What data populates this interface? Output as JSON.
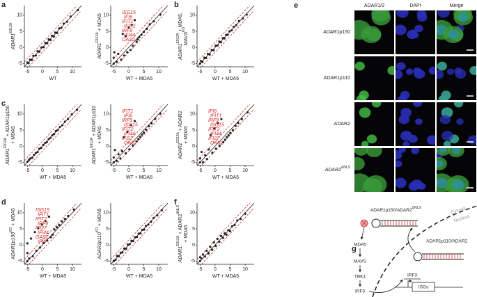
{
  "chart_data": [
    {
      "type": "scatter",
      "panel": "a",
      "ylabel": [
        [
          "ADAR1",
          "E912A"
        ]
      ],
      "xlabel": "WT",
      "x": [
        -5,
        -4.6,
        -4.1,
        -3.5,
        -3,
        -2.2,
        -1.6,
        -1,
        -0.3,
        0.4,
        1,
        1.6,
        2.1,
        2.7,
        3.2,
        3.8,
        4.3,
        4.9,
        5.6,
        6.3,
        7.1,
        8.2,
        9.4,
        11.8
      ],
      "y": [
        -4.7,
        -4.9,
        -3.8,
        -3.9,
        -2.6,
        -2.5,
        -1.2,
        -1.3,
        0,
        0.1,
        1.4,
        1.3,
        2.5,
        2.3,
        3.6,
        3.4,
        4.6,
        4.5,
        5.9,
        6.1,
        7.4,
        8,
        9.6,
        11.6
      ],
      "xlim": [
        -6,
        13
      ],
      "ylim": [
        -6,
        13
      ],
      "xticks": [
        -5,
        0,
        5,
        10
      ],
      "yticks": [
        -5,
        0,
        5,
        10
      ],
      "color": "#222222",
      "guide_color": "#d62728",
      "guide_offset": 1.5
    },
    {
      "type": "scatter",
      "ylabel": [
        [
          "ADAR1",
          "E912A",
          " + MDA5"
        ]
      ],
      "xlabel": "WT + MDA5",
      "x": [
        -5,
        -5,
        -4.8,
        -4,
        -3.5,
        -2.5,
        -2,
        -1.5,
        -1,
        -0.5,
        0,
        0.6,
        1,
        1.4,
        2,
        2.6,
        3,
        3.5,
        4.2,
        5,
        6,
        7,
        8.3,
        10.5
      ],
      "y": [
        -5,
        -3.2,
        -1.5,
        -4.5,
        -2,
        -3.8,
        4.2,
        -2.5,
        3.5,
        -1.5,
        6.2,
        -0.8,
        7,
        0.5,
        8.5,
        1.8,
        2.5,
        3.2,
        3.9,
        4.8,
        5.8,
        7.2,
        8.1,
        10.2
      ],
      "xlim": [
        -6,
        13
      ],
      "ylim": [
        -6,
        13
      ],
      "xticks": [
        -5,
        0,
        5,
        10
      ],
      "yticks": [
        -5,
        0,
        5,
        10
      ],
      "color": "#222222",
      "guide_color": "#d62728",
      "guide_offset": 1.5,
      "annotations": [
        "ISG15",
        "IFI6",
        "IFIT1",
        "IFIT2",
        "IRF9",
        "IFI44",
        "OAS2"
      ]
    },
    {
      "type": "scatter",
      "panel": "b",
      "ylabel": [
        [
          "ADAR1",
          "E912A",
          " + MDA5,"
        ],
        [
          "MAVS",
          "KO"
        ]
      ],
      "xlabel": "WT + MDA5",
      "x": [
        -5,
        -4.7,
        -4.2,
        -3.6,
        -3,
        -2.4,
        -1.8,
        -1.1,
        -0.5,
        0.2,
        0.8,
        1.4,
        2,
        2.6,
        3.1,
        3.7,
        4.2,
        4.8,
        5.5,
        6.2,
        7,
        8,
        9.2,
        10.5
      ],
      "y": [
        -5,
        -4.2,
        -4.5,
        -3.2,
        -3.3,
        -2,
        -2.2,
        -0.8,
        -0.9,
        0.5,
        0.6,
        1.8,
        1.6,
        2.9,
        2.8,
        3.9,
        3.9,
        5,
        5.3,
        6.4,
        6.9,
        8.2,
        9,
        10.2
      ],
      "xlim": [
        -6,
        13
      ],
      "ylim": [
        -6,
        13
      ],
      "xticks": [
        -5,
        0,
        5,
        10
      ],
      "yticks": [
        -5,
        0,
        5,
        10
      ],
      "color": "#222222",
      "guide_color": "#d62728",
      "guide_offset": 1.5
    },
    {
      "type": "scatter",
      "panel": "c",
      "ylabel": [
        [
          "ADAR1",
          "E912A",
          " + ADAR1p150"
        ],
        [
          "+ MDA5"
        ]
      ],
      "xlabel": "WT + MDA5",
      "x": [
        -5,
        -4.5,
        -4,
        -3.4,
        -2.8,
        -2.2,
        -1.6,
        -1,
        -0.4,
        0.3,
        0.9,
        1.5,
        2.1,
        2.7,
        3.3,
        3.9,
        4.5,
        5.1,
        5.8,
        6.6,
        7.5,
        8.5,
        9.8,
        11.5
      ],
      "y": [
        -4.8,
        -4.3,
        -3.8,
        -3.6,
        -2.7,
        -2.1,
        -1.8,
        -0.8,
        -0.5,
        0.4,
        1,
        1.3,
        2.2,
        2.6,
        3.4,
        3.8,
        4.7,
        5,
        6,
        6.5,
        7.6,
        8.4,
        9.9,
        11.3
      ],
      "xlim": [
        -6,
        13
      ],
      "ylim": [
        -6,
        13
      ],
      "xticks": [
        -5,
        0,
        5,
        10
      ],
      "yticks": [
        -5,
        0,
        5,
        10
      ],
      "color": "#222222",
      "guide_color": "#d62728",
      "guide_offset": 1.5
    },
    {
      "type": "scatter",
      "ylabel": [
        [
          "ADAR1",
          "E912A",
          " + ADAR1p110"
        ],
        [
          "+ MDA5"
        ]
      ],
      "xlabel": "WT + MDA5",
      "x": [
        -5,
        -5,
        -4.6,
        -4,
        -3.4,
        -2.8,
        -2.2,
        -1.6,
        -1,
        -0.4,
        0.2,
        0.8,
        1.4,
        2,
        2.6,
        3.2,
        3.8,
        4.4,
        5,
        5.8,
        6.7,
        7.6,
        8.8,
        10.5
      ],
      "y": [
        -5,
        -3.5,
        -1.2,
        -4.6,
        -2.5,
        -3.8,
        -1.5,
        2.8,
        -2.2,
        4.5,
        -1,
        6.5,
        0.2,
        7.8,
        1.5,
        2.2,
        2.9,
        3.6,
        4.2,
        5.1,
        6.2,
        7.1,
        8.5,
        10.1
      ],
      "xlim": [
        -6,
        13
      ],
      "ylim": [
        -6,
        13
      ],
      "xticks": [
        -5,
        0,
        5,
        10
      ],
      "yticks": [
        -5,
        0,
        5,
        10
      ],
      "color": "#222222",
      "guide_color": "#d62728",
      "guide_offset": 1.5,
      "annotations": [
        "IFIT1",
        "IFI6",
        "IRF9",
        "ISG15",
        "IFIT2",
        "IFI44",
        "IFI27",
        "OAS2"
      ]
    },
    {
      "type": "scatter",
      "ylabel": [
        [
          "ADAR1",
          "E912A",
          " + ADAR2"
        ],
        [
          "+ MDA5"
        ]
      ],
      "xlabel": "WT + MDA5",
      "x": [
        -5,
        -5,
        -4.5,
        -4,
        -3.3,
        -2.7,
        -2.1,
        -1.5,
        -0.9,
        -0.3,
        0.3,
        0.9,
        1.5,
        2.1,
        2.7,
        3.3,
        3.9,
        4.5,
        5.1,
        5.9,
        6.8,
        7.7,
        8.9,
        10.8
      ],
      "y": [
        -5,
        -3.8,
        -1.8,
        -5,
        -2.8,
        -4,
        -1,
        3.5,
        -2,
        5.5,
        -0.8,
        7.2,
        0.1,
        8.4,
        1.2,
        2,
        2.8,
        3.4,
        4.1,
        5,
        6.3,
        7.2,
        8.4,
        10.5
      ],
      "xlim": [
        -6,
        13
      ],
      "ylim": [
        -6,
        13
      ],
      "xticks": [
        -5,
        0,
        5,
        10
      ],
      "yticks": [
        -5,
        0,
        5,
        10
      ],
      "color": "#222222",
      "guide_color": "#d62728",
      "guide_offset": 1.5,
      "annotations": [
        "IFI6",
        "IFIT1",
        "IRF9",
        "ISG15",
        "IFIT2",
        "IFI44",
        "IFI27",
        "OAS2"
      ]
    },
    {
      "type": "scatter",
      "panel": "d",
      "ylabel": [
        [
          "ADAR1p150",
          "KO",
          " + MDA5"
        ]
      ],
      "xlabel": "WT + MDA5",
      "x": [
        -5,
        -5,
        -5,
        -4.4,
        -3.8,
        -3.2,
        -2.5,
        -2,
        -1.4,
        -0.8,
        -0.2,
        0.4,
        1,
        1.6,
        2.2,
        2.8,
        3.4,
        4,
        4.8,
        5.6,
        6.5,
        7.5,
        8.6,
        10.5
      ],
      "y": [
        -5,
        -2.5,
        0.5,
        -4.2,
        2,
        -3.5,
        4,
        -1.8,
        5.2,
        -0.8,
        6.3,
        0.6,
        7.4,
        1.4,
        8.8,
        2.4,
        3.2,
        4.8,
        5.5,
        6.2,
        7.3,
        8.1,
        9,
        11
      ],
      "xlim": [
        -6,
        13
      ],
      "ylim": [
        -6,
        13
      ],
      "xticks": [
        -5,
        0,
        5,
        10
      ],
      "yticks": [
        -5,
        0,
        5,
        10
      ],
      "color": "#222222",
      "guide_color": "#d62728",
      "guide_offset": 1.5,
      "annotations": [
        "ISG15",
        "IFIT1",
        "IFIT2",
        "IRF9",
        "IFI27",
        "IFI44",
        "OAS2",
        "IFI6"
      ]
    },
    {
      "type": "scatter",
      "ylabel": [
        [
          "ADAR1p110",
          "KO",
          " + MDA5"
        ]
      ],
      "xlabel": "WT + MDA5",
      "x": [
        -5,
        -4.4,
        -3.9,
        -3.3,
        -2.7,
        -2.1,
        -1.5,
        -0.9,
        -0.3,
        0.3,
        0.9,
        1.5,
        2.1,
        2.7,
        3.3,
        3.9,
        4.5,
        5.1,
        5.7,
        6.5,
        7.4,
        8.3,
        9.5,
        11
      ],
      "y": [
        -5,
        -4.6,
        -3.4,
        -3.5,
        -2.4,
        -2.3,
        -1.1,
        -1.2,
        0.1,
        0.2,
        1.3,
        1.2,
        2.4,
        2.5,
        3.5,
        3.6,
        4.7,
        4.8,
        5.9,
        6.3,
        7.2,
        8.4,
        9.2,
        10.8
      ],
      "xlim": [
        -6,
        13
      ],
      "ylim": [
        -6,
        13
      ],
      "xticks": [
        -5,
        0,
        5,
        10
      ],
      "yticks": [
        -5,
        0,
        5,
        10
      ],
      "color": "#222222",
      "guide_color": "#d62728",
      "guide_offset": 1.5
    },
    {
      "type": "scatter",
      "panel": "f",
      "ylabel": [
        [
          "ADAR1",
          "E912A",
          " + ADAR2",
          "ΔNLS"
        ],
        [
          "+ MDA5"
        ]
      ],
      "xlabel": "WT + MDA5",
      "x": [
        -5,
        -5,
        -4.5,
        -4,
        -3.4,
        -2.8,
        -2.2,
        -1.6,
        -1,
        -0.4,
        0.2,
        0.8,
        1.4,
        2,
        2.6,
        3.2,
        3.8,
        4.4,
        5,
        5.7,
        6.5,
        7.4,
        8.5,
        10
      ],
      "y": [
        -5,
        -3.8,
        -4.2,
        -3,
        -3.6,
        -1.8,
        -2.6,
        -0.6,
        -1.5,
        0.8,
        -0.3,
        1.9,
        1,
        2.8,
        2.2,
        3.6,
        3.2,
        4.6,
        4.3,
        5.8,
        6.2,
        7.6,
        8.1,
        9.7
      ],
      "xlim": [
        -6,
        13
      ],
      "ylim": [
        -6,
        13
      ],
      "xticks": [
        -5,
        0,
        5,
        10
      ],
      "yticks": [
        -5,
        0,
        5,
        10
      ],
      "color": "#222222",
      "guide_color": "#d62728",
      "guide_offset": 1.5
    }
  ],
  "microscopy": {
    "panel": "e",
    "columns": [
      "ADAR1/2",
      "DAPI",
      "Merge"
    ],
    "rows": [
      [
        "ADAR1p150"
      ],
      [
        "ADAR1p110"
      ],
      [
        "ADAR2"
      ],
      [
        "ADAR2",
        "ΔNLS"
      ]
    ]
  },
  "diagram": {
    "panel": "g",
    "cytoplasmic_complex": [
      "ADAR1p150/ADAR2",
      "ΔNLS"
    ],
    "cytosol": "Cytosol",
    "nucleus": "Nucleus",
    "pathway": [
      "MDA5",
      "MAVS",
      "TBK1",
      "IRF3"
    ],
    "nuclear_complex": "ADAR1p110/ADAR2",
    "nuclear_factor": "IRF3",
    "gene": "ISGs"
  }
}
